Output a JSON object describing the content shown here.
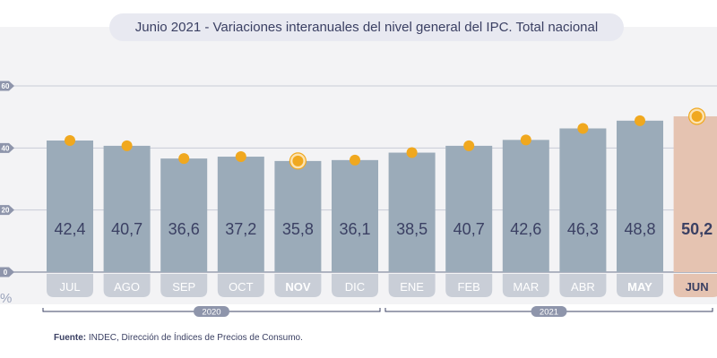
{
  "title": "Junio 2021 - Variaciones interanuales del nivel general del IPC. Total nacional",
  "source_label": "Fuente:",
  "source_text": "INDEC, Dirección de Índices de Precios de Consumo.",
  "chart_data": {
    "type": "bar",
    "title": "Junio 2021 - Variaciones interanuales del nivel general del IPC. Total nacional",
    "xlabel": "",
    "ylabel": "%",
    "ylim": [
      0,
      60
    ],
    "yticks": [
      0,
      20,
      40,
      60
    ],
    "grid": true,
    "categories": [
      "JUL",
      "AGO",
      "SEP",
      "OCT",
      "NOV",
      "DIC",
      "ENE",
      "FEB",
      "MAR",
      "ABR",
      "MAY",
      "JUN"
    ],
    "values": [
      42.4,
      40.7,
      36.6,
      37.2,
      35.8,
      36.1,
      38.5,
      40.7,
      42.6,
      46.3,
      48.8,
      50.2
    ],
    "value_labels": [
      "42,4",
      "40,7",
      "36,6",
      "37,2",
      "35,8",
      "36,1",
      "38,5",
      "40,7",
      "42,6",
      "46,3",
      "48,8",
      "50,2"
    ],
    "highlight_categories": [
      "NOV",
      "MAY",
      "JUN"
    ],
    "highlight_bar": "JUN",
    "year_groups": [
      {
        "label": "2020",
        "categories": [
          "JUL",
          "AGO",
          "SEP",
          "OCT",
          "NOV",
          "DIC"
        ]
      },
      {
        "label": "2021",
        "categories": [
          "ENE",
          "FEB",
          "MAR",
          "ABR",
          "MAY",
          "JUN"
        ]
      }
    ],
    "colors": {
      "bar": "#9babb9",
      "bar_highlight": "#e5c3b1",
      "marker": "#f0a81f",
      "value_text": "#3b4063",
      "pill": "#c9ced7",
      "pill_text": "#ffffff",
      "pill_text_highlight": "#3b4063"
    }
  }
}
